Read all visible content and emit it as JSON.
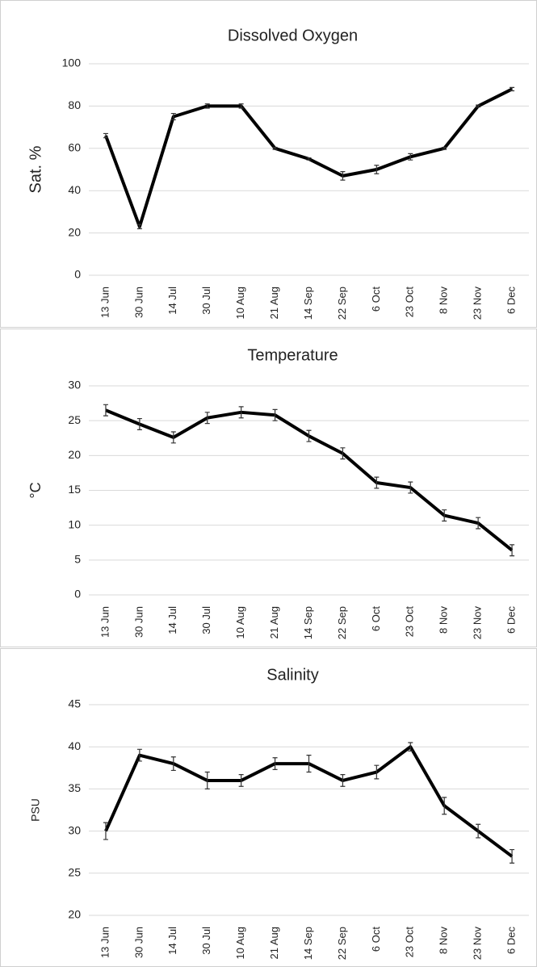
{
  "chart_data": [
    {
      "type": "line",
      "title": "Dissolved Oxygen",
      "y_label": "Sat. %",
      "categories": [
        "13 Jun",
        "30 Jun",
        "14 Jul",
        "30 Jul",
        "10 Aug",
        "21 Aug",
        "14 Sep",
        "22 Sep",
        "6 Oct",
        "23 Oct",
        "8 Nov",
        "23 Nov",
        "6 Dec"
      ],
      "values": [
        66,
        23,
        75,
        80,
        80,
        60,
        55,
        47,
        50,
        56,
        60,
        80,
        88
      ],
      "errors": [
        1,
        1,
        1.5,
        1,
        1,
        0.5,
        0.5,
        2,
        2,
        1.5,
        0.5,
        0.5,
        0.8
      ],
      "color": "#000000",
      "ylim": [
        0,
        100
      ],
      "yticks": [
        0,
        20,
        40,
        60,
        80,
        100
      ],
      "grid": true
    },
    {
      "type": "line",
      "title": "Temperature",
      "y_label": "°C",
      "categories": [
        "13 Jun",
        "30 Jun",
        "14 Jul",
        "30 Jul",
        "10 Aug",
        "21 Aug",
        "14 Sep",
        "22 Sep",
        "6 Oct",
        "23 Oct",
        "8 Nov",
        "23 Nov",
        "6 Dec"
      ],
      "values": [
        26.5,
        24.5,
        22.6,
        25.4,
        26.2,
        25.8,
        22.8,
        20.3,
        16.1,
        15.4,
        11.4,
        10.3,
        6.4
      ],
      "errors": [
        0.8,
        0.8,
        0.8,
        0.8,
        0.8,
        0.8,
        0.8,
        0.8,
        0.8,
        0.8,
        0.8,
        0.8,
        0.8
      ],
      "color": "#000000",
      "ylim": [
        0,
        30
      ],
      "yticks": [
        0,
        5,
        10,
        15,
        20,
        25,
        30
      ],
      "grid": true
    },
    {
      "type": "line",
      "title": "Salinity",
      "y_label": "PSU",
      "categories": [
        "13 Jun",
        "30 Jun",
        "14 Jul",
        "30 Jul",
        "10 Aug",
        "21 Aug",
        "14 Sep",
        "22 Sep",
        "6 Oct",
        "23 Oct",
        "8 Nov",
        "23 Nov",
        "6 Dec"
      ],
      "values": [
        30,
        39,
        38,
        36,
        36,
        38,
        38,
        36,
        37,
        40,
        33,
        30,
        27
      ],
      "errors": [
        1,
        0.7,
        0.8,
        1,
        0.7,
        0.7,
        1,
        0.7,
        0.8,
        0.5,
        1,
        0.8,
        0.8
      ],
      "color": "#000000",
      "ylim": [
        20,
        45
      ],
      "yticks": [
        20,
        25,
        30,
        35,
        40,
        45
      ],
      "grid": true
    }
  ]
}
